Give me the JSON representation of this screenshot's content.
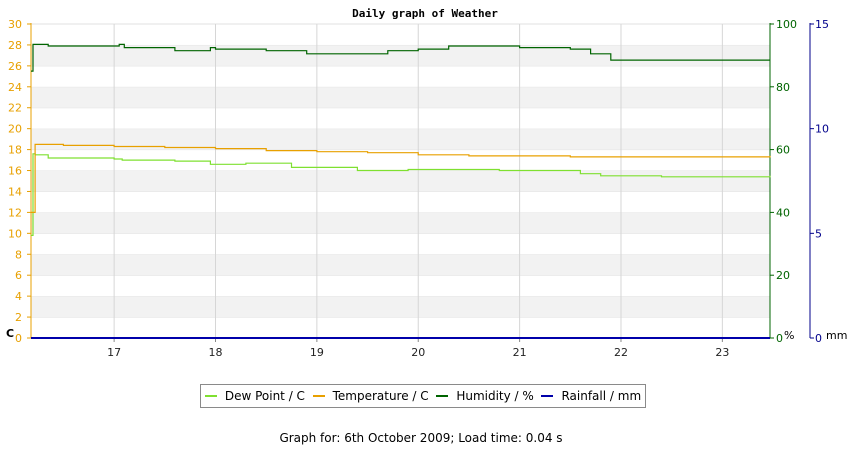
{
  "chart_data": {
    "type": "line",
    "title": "Daily graph of Weather",
    "x_ticks": [
      "17",
      "18",
      "19",
      "20",
      "21",
      "22",
      "23"
    ],
    "x_range": [
      16.18,
      23.47
    ],
    "left_axis": {
      "unit": "C",
      "ylim": [
        0,
        30
      ],
      "ticks": [
        "0",
        "2",
        "4",
        "6",
        "8",
        "10",
        "12",
        "14",
        "16",
        "18",
        "20",
        "22",
        "24",
        "26",
        "28",
        "30"
      ],
      "color": "#e8a000"
    },
    "right_axis_1": {
      "unit": "%",
      "ylim": [
        0,
        100
      ],
      "ticks": [
        "0",
        "20",
        "40",
        "60",
        "80",
        "100"
      ],
      "color": "#006400"
    },
    "right_axis_2": {
      "unit": "mm",
      "ylim": [
        0,
        15
      ],
      "ticks": [
        "0",
        "5",
        "10",
        "15"
      ],
      "color": "#00008b"
    },
    "grid": "horizontal bands and vertical gridlines",
    "series": [
      {
        "name": "Dew Point / C",
        "axis": "left",
        "color": "#7fe030",
        "x": [
          16.18,
          16.2,
          16.22,
          16.35,
          17.0,
          17.08,
          17.6,
          17.95,
          18.3,
          18.75,
          19.4,
          19.9,
          20.5,
          20.8,
          21.45,
          21.6,
          21.8,
          22.4,
          23.0,
          23.47
        ],
        "y": [
          9.8,
          17.6,
          17.5,
          17.2,
          17.1,
          17.0,
          16.9,
          16.6,
          16.7,
          16.3,
          16.0,
          16.1,
          16.1,
          16.0,
          16.0,
          15.7,
          15.5,
          15.4,
          15.4,
          15.5
        ]
      },
      {
        "name": "Temperature / C",
        "axis": "left",
        "color": "#e8a000",
        "x": [
          16.18,
          16.22,
          16.5,
          17.0,
          17.5,
          18.0,
          18.5,
          19.0,
          19.5,
          20.0,
          20.5,
          21.0,
          21.5,
          22.0,
          22.5,
          23.0,
          23.47
        ],
        "y": [
          12.0,
          18.5,
          18.4,
          18.3,
          18.2,
          18.1,
          17.9,
          17.8,
          17.7,
          17.5,
          17.4,
          17.4,
          17.3,
          17.3,
          17.3,
          17.3,
          17.4
        ]
      },
      {
        "name": "Humidity / %",
        "axis": "right_1",
        "color": "#006400",
        "x": [
          16.18,
          16.2,
          16.3,
          16.35,
          17.0,
          17.05,
          17.1,
          17.6,
          17.95,
          18.0,
          18.5,
          18.9,
          19.4,
          19.7,
          20.0,
          20.3,
          20.5,
          21.0,
          21.5,
          21.7,
          21.9,
          22.5,
          23.47
        ],
        "y": [
          85,
          93.5,
          93.5,
          93,
          93,
          93.5,
          92.5,
          91.5,
          92.5,
          92,
          91.5,
          90.5,
          90.5,
          91.5,
          92,
          93,
          93,
          92.5,
          92,
          90.5,
          88.5,
          88.5,
          88.5
        ]
      },
      {
        "name": "Rainfall / mm",
        "axis": "right_2",
        "color": "#0000aa",
        "x": [
          16.18,
          23.47
        ],
        "y": [
          0,
          0
        ]
      }
    ],
    "legend_placement": "bottom"
  },
  "footer": "Graph for: 6th October 2009; Load time: 0.04 s"
}
